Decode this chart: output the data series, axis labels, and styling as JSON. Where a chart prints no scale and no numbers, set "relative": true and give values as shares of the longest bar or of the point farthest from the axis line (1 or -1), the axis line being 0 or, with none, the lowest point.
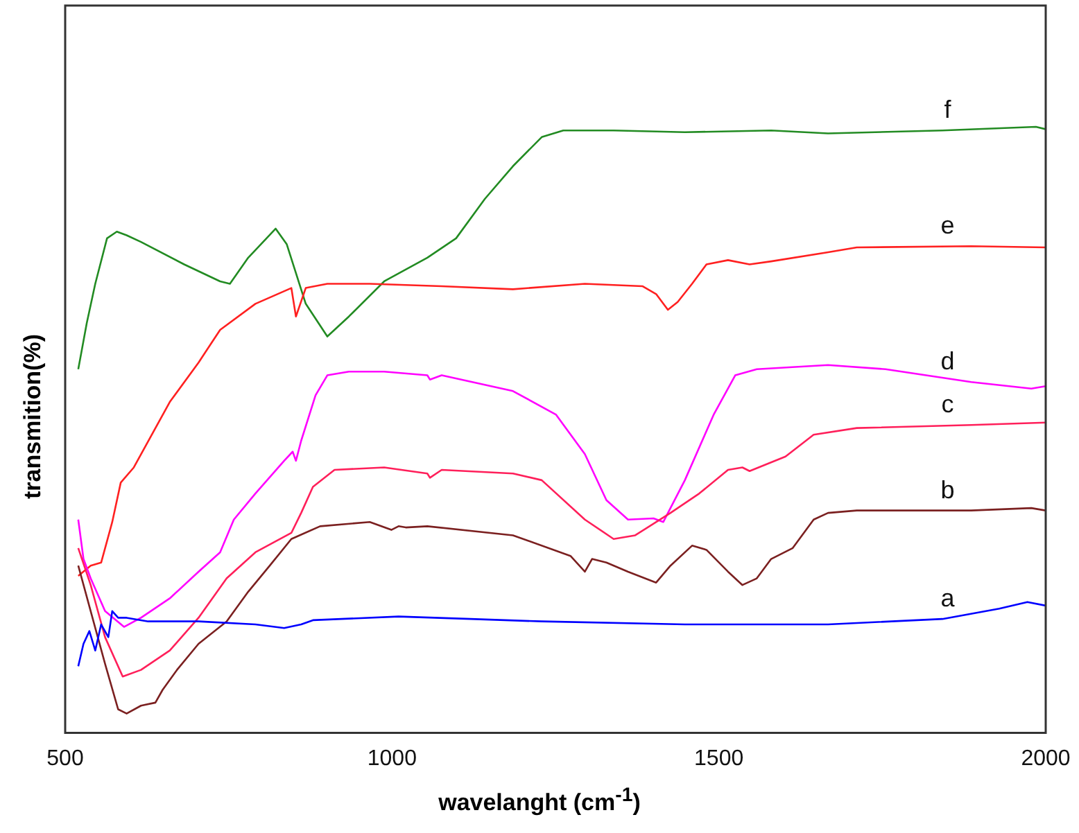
{
  "chart_data": {
    "type": "line",
    "relative": true,
    "xlabel": "wavelanght (cm$^{-1}$)",
    "ylabel": "transmition(%)",
    "xlim": [
      500,
      2000
    ],
    "xticks": [
      500,
      1000,
      1500,
      2000
    ],
    "grid": false,
    "legend": false,
    "marker": "none",
    "line_style": "solid",
    "series": [
      {
        "name": "a",
        "color": "#0000ff",
        "x": [
          520,
          528,
          537,
          546,
          555,
          566,
          572,
          581,
          594,
          627,
          704,
          791,
          835,
          861,
          879,
          1010,
          1120,
          1229,
          1448,
          1667,
          1842,
          1929,
          1972,
          2000
        ],
        "values": [
          0.11,
          0.147,
          0.168,
          0.136,
          0.179,
          0.158,
          0.201,
          0.19,
          0.19,
          0.184,
          0.184,
          0.179,
          0.173,
          0.179,
          0.186,
          0.192,
          0.188,
          0.184,
          0.179,
          0.179,
          0.188,
          0.205,
          0.216,
          0.21
        ]
      },
      {
        "name": "b",
        "color": "#7b2020",
        "x": [
          520,
          539,
          561,
          581,
          594,
          616,
          638,
          649,
          671,
          704,
          747,
          780,
          813,
          846,
          890,
          966,
          999,
          1010,
          1021,
          1054,
          1185,
          1273,
          1295,
          1306,
          1328,
          1361,
          1404,
          1426,
          1459,
          1481,
          1514,
          1536,
          1558,
          1580,
          1613,
          1645,
          1667,
          1711,
          1886,
          1978,
          2000
        ],
        "values": [
          0.276,
          0.201,
          0.114,
          0.039,
          0.032,
          0.045,
          0.05,
          0.071,
          0.104,
          0.147,
          0.184,
          0.233,
          0.276,
          0.32,
          0.341,
          0.348,
          0.335,
          0.341,
          0.339,
          0.341,
          0.326,
          0.292,
          0.266,
          0.287,
          0.281,
          0.266,
          0.248,
          0.276,
          0.309,
          0.302,
          0.266,
          0.244,
          0.255,
          0.287,
          0.305,
          0.352,
          0.363,
          0.367,
          0.367,
          0.371,
          0.367
        ]
      },
      {
        "name": "c",
        "color": "#ff1f5a",
        "x": [
          520,
          539,
          561,
          588,
          616,
          660,
          704,
          747,
          791,
          846,
          861,
          879,
          912,
          988,
          1054,
          1058,
          1076,
          1185,
          1229,
          1295,
          1339,
          1372,
          1426,
          1470,
          1514,
          1536,
          1547,
          1602,
          1645,
          1711,
          1886,
          2000
        ],
        "values": [
          0.305,
          0.244,
          0.158,
          0.093,
          0.104,
          0.136,
          0.19,
          0.255,
          0.298,
          0.33,
          0.363,
          0.406,
          0.434,
          0.438,
          0.428,
          0.421,
          0.434,
          0.428,
          0.417,
          0.352,
          0.32,
          0.326,
          0.363,
          0.395,
          0.434,
          0.438,
          0.432,
          0.456,
          0.492,
          0.503,
          0.508,
          0.512
        ]
      },
      {
        "name": "d",
        "color": "#ff00ff",
        "x": [
          520,
          528,
          539,
          561,
          590,
          616,
          660,
          704,
          737,
          758,
          791,
          835,
          848,
          853,
          861,
          883,
          901,
          934,
          988,
          1054,
          1058,
          1076,
          1185,
          1251,
          1295,
          1328,
          1361,
          1400,
          1415,
          1448,
          1492,
          1525,
          1558,
          1667,
          1755,
          1886,
          1978,
          2000
        ],
        "values": [
          0.352,
          0.287,
          0.255,
          0.201,
          0.175,
          0.19,
          0.222,
          0.266,
          0.298,
          0.352,
          0.395,
          0.449,
          0.464,
          0.449,
          0.482,
          0.557,
          0.59,
          0.596,
          0.596,
          0.59,
          0.583,
          0.59,
          0.564,
          0.525,
          0.46,
          0.384,
          0.352,
          0.354,
          0.348,
          0.417,
          0.525,
          0.59,
          0.6,
          0.607,
          0.6,
          0.579,
          0.568,
          0.572
        ]
      },
      {
        "name": "e",
        "color": "#ff2020",
        "x": [
          520,
          539,
          555,
          572,
          585,
          605,
          660,
          704,
          737,
          791,
          846,
          853,
          868,
          901,
          966,
          1076,
          1185,
          1295,
          1383,
          1404,
          1422,
          1437,
          1459,
          1481,
          1514,
          1547,
          1580,
          1667,
          1711,
          1886,
          2000
        ],
        "values": [
          0.259,
          0.276,
          0.281,
          0.348,
          0.413,
          0.438,
          0.546,
          0.611,
          0.665,
          0.708,
          0.734,
          0.687,
          0.734,
          0.741,
          0.741,
          0.737,
          0.732,
          0.741,
          0.737,
          0.724,
          0.698,
          0.711,
          0.741,
          0.773,
          0.78,
          0.773,
          0.778,
          0.793,
          0.801,
          0.803,
          0.801
        ]
      },
      {
        "name": "f",
        "color": "#228b22",
        "x": [
          520,
          533,
          546,
          564,
          579,
          594,
          616,
          682,
          737,
          752,
          780,
          822,
          839,
          868,
          901,
          934,
          988,
          1054,
          1098,
          1142,
          1185,
          1229,
          1262,
          1339,
          1448,
          1580,
          1667,
          1842,
          1985,
          2000
        ],
        "values": [
          0.6,
          0.676,
          0.741,
          0.816,
          0.827,
          0.821,
          0.81,
          0.773,
          0.745,
          0.741,
          0.784,
          0.832,
          0.806,
          0.708,
          0.654,
          0.687,
          0.745,
          0.784,
          0.816,
          0.881,
          0.935,
          0.983,
          0.994,
          0.994,
          0.991,
          0.994,
          0.989,
          0.994,
          1,
          0.996
        ]
      }
    ]
  }
}
